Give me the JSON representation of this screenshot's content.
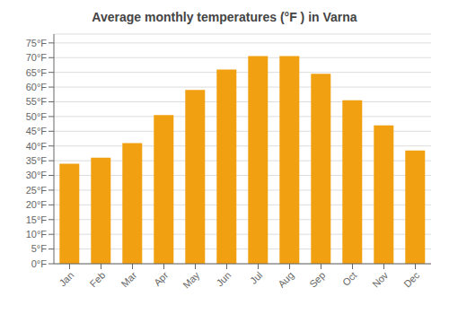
{
  "chart_data": {
    "type": "bar",
    "title": "Average monthly temperatures (°F ) in Varna",
    "categories": [
      "Jan",
      "Feb",
      "Mar",
      "Apr",
      "May",
      "Jun",
      "Jul",
      "Aug",
      "Sep",
      "Oct",
      "Nov",
      "Dec"
    ],
    "values": [
      34,
      36,
      41,
      50.5,
      59,
      66,
      70.5,
      70.5,
      64.5,
      55.5,
      47,
      38.5
    ],
    "color": "#F0A010",
    "ylim": [
      0,
      78
    ],
    "yticks": [
      {
        "value": 0,
        "label": "0°F"
      },
      {
        "value": 5,
        "label": "5°F"
      },
      {
        "value": 10,
        "label": "10°F"
      },
      {
        "value": 15,
        "label": "15°F"
      },
      {
        "value": 20,
        "label": "20°F"
      },
      {
        "value": 25,
        "label": "25°F"
      },
      {
        "value": 30,
        "label": "30°F"
      },
      {
        "value": 35,
        "label": "35°F"
      },
      {
        "value": 40,
        "label": "40°F"
      },
      {
        "value": 45,
        "label": "45°F"
      },
      {
        "value": 50,
        "label": "50°F"
      },
      {
        "value": 55,
        "label": "55°F"
      },
      {
        "value": 60,
        "label": "60°F"
      },
      {
        "value": 65,
        "label": "65°F"
      },
      {
        "value": 70,
        "label": "70°F"
      },
      {
        "value": 75,
        "label": "75°F"
      }
    ],
    "grid": true
  }
}
